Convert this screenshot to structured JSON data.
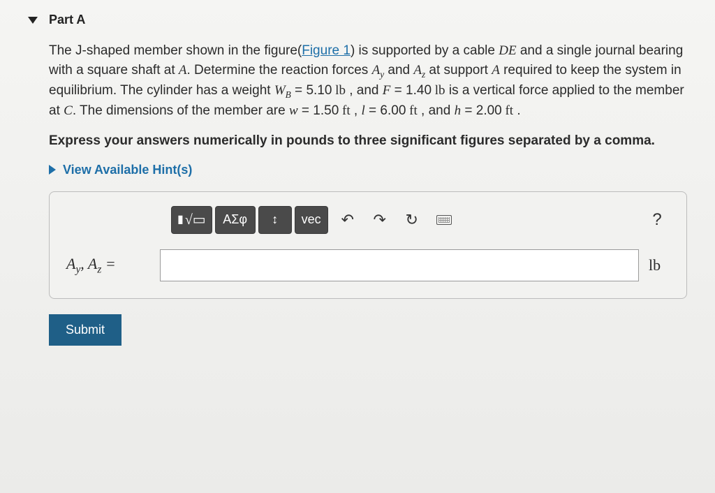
{
  "part": {
    "label": "Part A"
  },
  "problem": {
    "pre_figure": "The J-shaped member shown in the figure(",
    "figure_link": "Figure 1",
    "post_figure": ") is supported by a cable ",
    "cable": "DE",
    "text2": " and a single journal bearing with a square shaft at ",
    "ptA": "A",
    "text3": ". Determine the reaction forces ",
    "Ay": "A",
    "Ay_sub": "y",
    "text_and": " and ",
    "Az": "A",
    "Az_sub": "z",
    "text4": " at support ",
    "ptA2": "A",
    "text5": " required to keep the system in equilibrium.  The cylinder has a weight ",
    "WB": "W",
    "WB_sub": "B",
    "eq1": " = ",
    "WB_val": "5.10",
    "WB_unit": " lb",
    "text6": " , and ",
    "F": "F",
    "eq2": " = ",
    "F_val": "1.40",
    "F_unit": " lb",
    "text7": " is a vertical force applied to the member at ",
    "ptC": "C",
    "text8": ".  The dimensions of the member are ",
    "w": "w",
    "eq3": " = ",
    "w_val": "1.50",
    "w_unit": " ft",
    "text9": " , ",
    "l": "l",
    "eq4": " = ",
    "l_val": "6.00",
    "l_unit": " ft",
    "text10": " , and ",
    "h": "h",
    "eq5": " = ",
    "h_val": "2.00",
    "h_unit": " ft",
    "text11": " ."
  },
  "instruction": "Express your answers numerically in pounds to three significant figures separated by a comma.",
  "hints": {
    "label": "View Available Hint(s)"
  },
  "toolbar": {
    "templates": "▮",
    "greek": "ΑΣφ",
    "subsup": "↕",
    "vec": "vec",
    "undo": "↶",
    "redo": "↷",
    "reset": "↻",
    "help": "?"
  },
  "answer": {
    "label_A1": "A",
    "label_A1_sub": "y",
    "label_sep": ", ",
    "label_A2": "A",
    "label_A2_sub": "z",
    "label_eq": " = ",
    "value": "",
    "unit": "lb"
  },
  "submit": {
    "label": "Submit"
  }
}
